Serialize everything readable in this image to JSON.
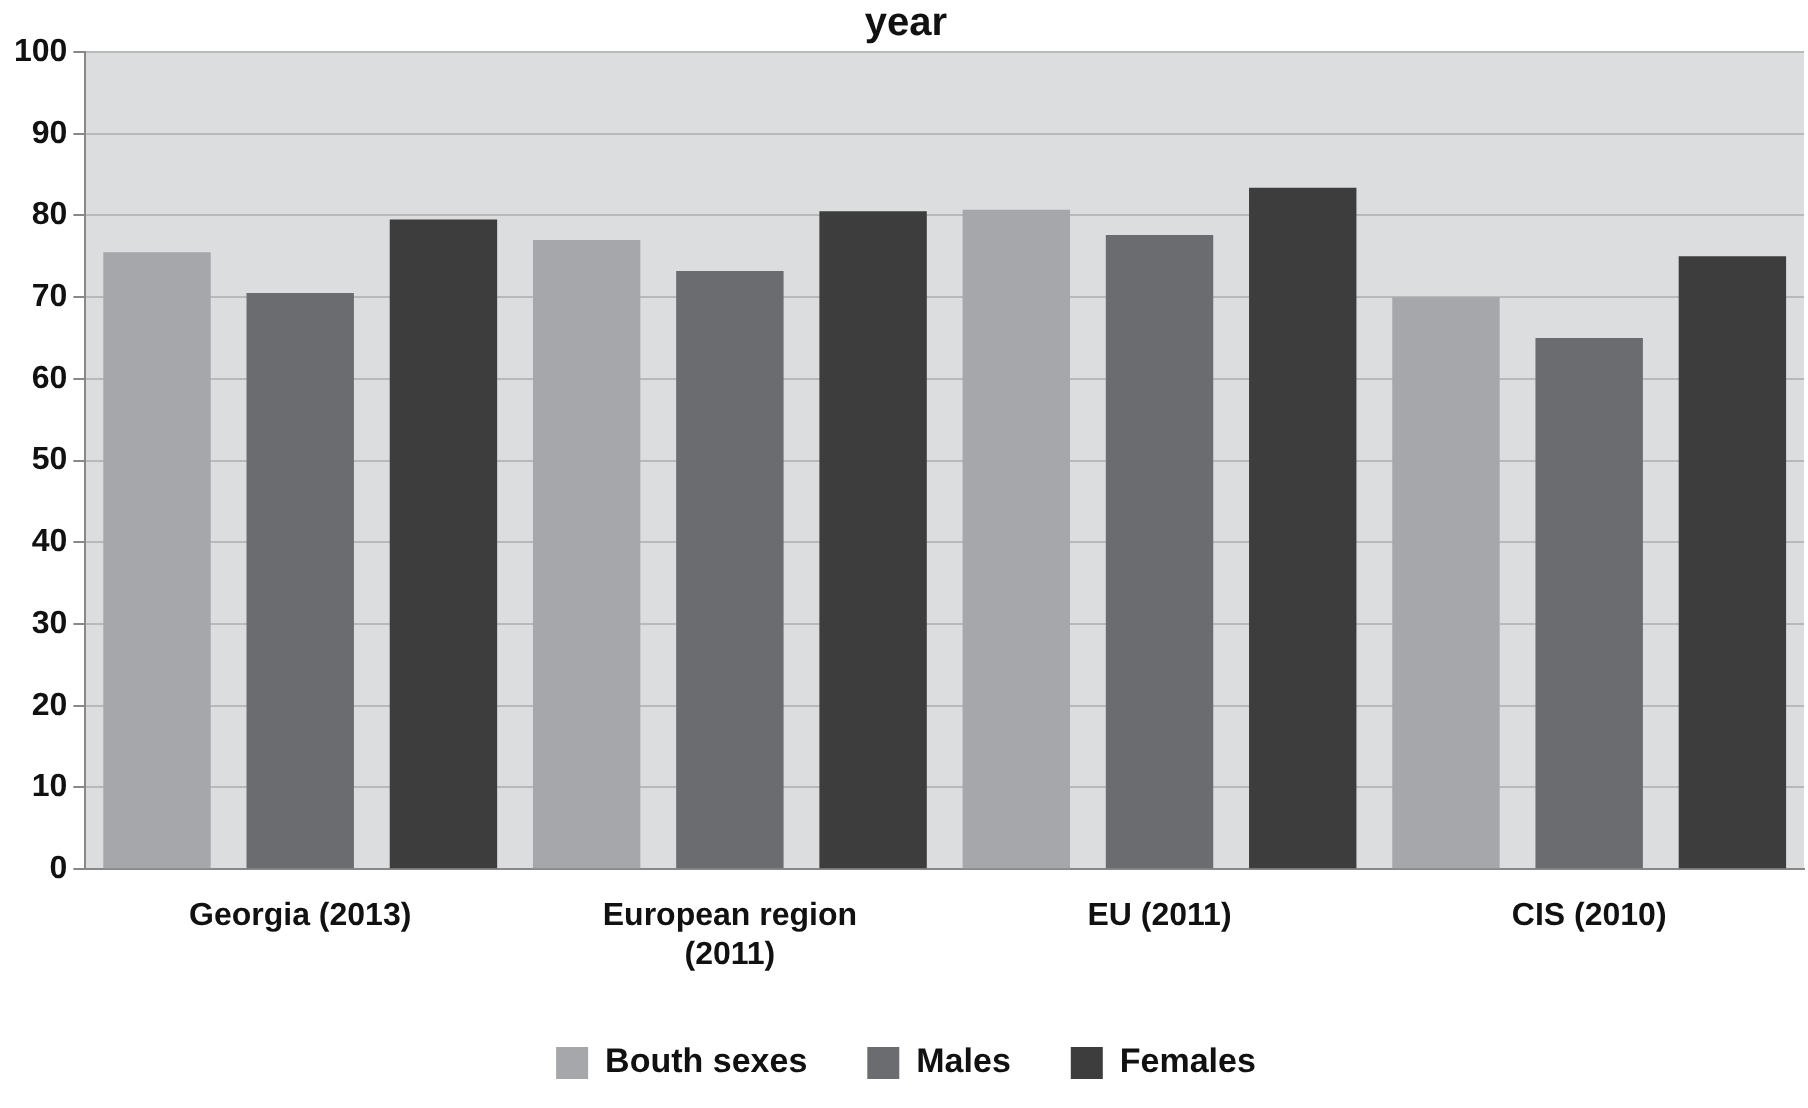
{
  "chart_data": {
    "type": "bar",
    "title": "year",
    "categories": [
      "Georgia (2013)",
      "European region (2011)",
      "EU (2011)",
      "CIS (2010)"
    ],
    "series": [
      {
        "name": "Bouth sexes",
        "color": "#a6a7aa",
        "values": [
          75.5,
          77,
          80.7,
          70
        ]
      },
      {
        "name": "Males",
        "color": "#6b6c70",
        "values": [
          70.5,
          73.2,
          77.6,
          65
        ]
      },
      {
        "name": "Females",
        "color": "#3d3d3d",
        "values": [
          79.5,
          80.5,
          83.4,
          75
        ]
      }
    ],
    "ylim": [
      0,
      100
    ],
    "yticks": [
      0,
      10,
      20,
      30,
      40,
      50,
      60,
      70,
      80,
      90,
      100
    ],
    "grid": "y",
    "legend": "bottom"
  }
}
